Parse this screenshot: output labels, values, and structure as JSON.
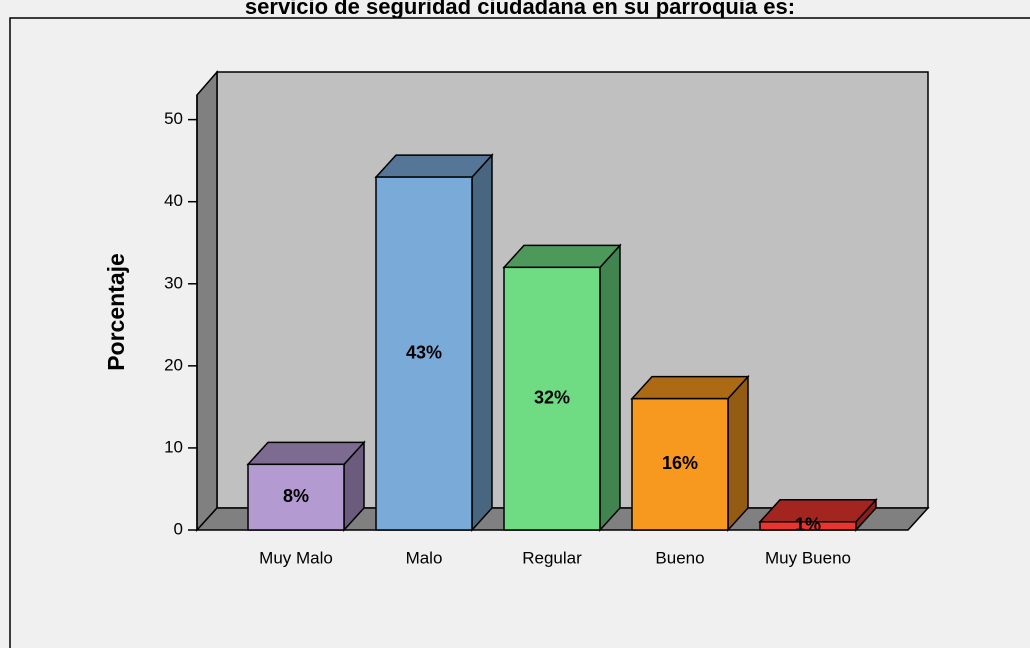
{
  "chart_data": {
    "type": "bar3d",
    "title": "servicio de seguridad ciudadana en su parroquia es:",
    "y_label": "Porcentaje",
    "categories": [
      "Muy Malo",
      "Malo",
      "Regular",
      "Bueno",
      "Muy Bueno"
    ],
    "series": [
      {
        "name": "Porcentaje",
        "values": [
          8,
          43,
          32,
          16,
          1
        ],
        "value_labels": [
          "8%",
          "43%",
          "32%",
          "16%",
          "1%"
        ],
        "colors": [
          "#b39ad0",
          "#7aaad8",
          "#6fdc84",
          "#f7991f",
          "#e8352f"
        ]
      }
    ],
    "ylim": [
      0,
      53
    ],
    "yticks": [
      0,
      10,
      20,
      30,
      40,
      50
    ]
  }
}
